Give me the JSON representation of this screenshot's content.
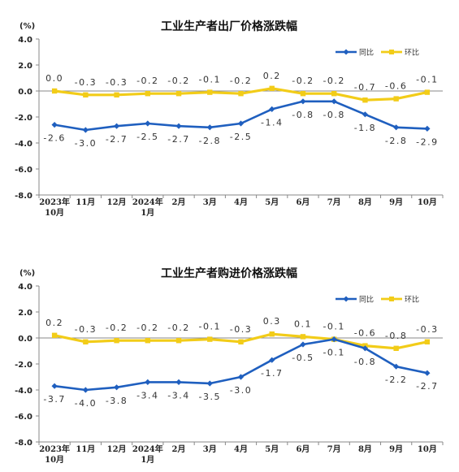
{
  "chart_data": [
    {
      "type": "line",
      "title": "工业生产者出厂价格涨跌幅",
      "unit": "(%)",
      "ylim": [
        -8.0,
        4.0
      ],
      "yticks": [
        "4.0",
        "2.0",
        "0.0",
        "-2.0",
        "-4.0",
        "-6.0",
        "-8.0"
      ],
      "categories": [
        [
          "2023年",
          "10月"
        ],
        [
          "11月"
        ],
        [
          "12月"
        ],
        [
          "2024年",
          "1月"
        ],
        [
          "2月"
        ],
        [
          "3月"
        ],
        [
          "4月"
        ],
        [
          "5月"
        ],
        [
          "6月"
        ],
        [
          "7月"
        ],
        [
          "8月"
        ],
        [
          "9月"
        ],
        [
          "10月"
        ]
      ],
      "grid": false,
      "legend_position": "top-right",
      "series": [
        {
          "name": "同比",
          "color": "#1f5fbf",
          "marker": "diamond",
          "values": [
            -2.6,
            -3.0,
            -2.7,
            -2.5,
            -2.7,
            -2.8,
            -2.5,
            -1.4,
            -0.8,
            -0.8,
            -1.8,
            -2.8,
            -2.9
          ],
          "labels": [
            "-2.6",
            "-3.0",
            "-2.7",
            "-2.5",
            "-2.7",
            "-2.8",
            "-2.5",
            "-1.4",
            "-0.8",
            "-0.8",
            "-1.8",
            "-2.8",
            "-2.9"
          ]
        },
        {
          "name": "环比",
          "color": "#f2cc18",
          "marker": "square",
          "values": [
            0.0,
            -0.3,
            -0.3,
            -0.2,
            -0.2,
            -0.1,
            -0.2,
            0.2,
            -0.2,
            -0.2,
            -0.7,
            -0.6,
            -0.1
          ],
          "labels": [
            "0.0",
            "-0.3",
            "-0.3",
            "-0.2",
            "-0.2",
            "-0.1",
            "-0.2",
            "0.2",
            "-0.2",
            "-0.2",
            "-0.7",
            "-0.6",
            "-0.1"
          ]
        }
      ]
    },
    {
      "type": "line",
      "title": "工业生产者购进价格涨跌幅",
      "unit": "(%)",
      "ylim": [
        -8.0,
        4.0
      ],
      "yticks": [
        "4.0",
        "2.0",
        "0.0",
        "-2.0",
        "-4.0",
        "-6.0",
        "-8.0"
      ],
      "categories": [
        [
          "2023年",
          "10月"
        ],
        [
          "11月"
        ],
        [
          "12月"
        ],
        [
          "2024年",
          "1月"
        ],
        [
          "2月"
        ],
        [
          "3月"
        ],
        [
          "4月"
        ],
        [
          "5月"
        ],
        [
          "6月"
        ],
        [
          "7月"
        ],
        [
          "8月"
        ],
        [
          "9月"
        ],
        [
          "10月"
        ]
      ],
      "grid": false,
      "legend_position": "top-right",
      "series": [
        {
          "name": "同比",
          "color": "#1f5fbf",
          "marker": "diamond",
          "values": [
            -3.7,
            -4.0,
            -3.8,
            -3.4,
            -3.4,
            -3.5,
            -3.0,
            -1.7,
            -0.5,
            -0.1,
            -0.8,
            -2.2,
            -2.7
          ],
          "labels": [
            "-3.7",
            "-4.0",
            "-3.8",
            "-3.4",
            "-3.4",
            "-3.5",
            "-3.0",
            "-1.7",
            "-0.5",
            "-0.1",
            "-0.8",
            "-2.2",
            "-2.7"
          ]
        },
        {
          "name": "环比",
          "color": "#f2cc18",
          "marker": "square",
          "values": [
            0.2,
            -0.3,
            -0.2,
            -0.2,
            -0.2,
            -0.1,
            -0.3,
            0.3,
            0.1,
            -0.1,
            -0.6,
            -0.8,
            -0.3
          ],
          "labels": [
            "0.2",
            "-0.3",
            "-0.2",
            "-0.2",
            "-0.2",
            "-0.1",
            "-0.3",
            "0.3",
            "0.1",
            "-0.1",
            "-0.6",
            "-0.8",
            "-0.3"
          ]
        }
      ]
    }
  ]
}
